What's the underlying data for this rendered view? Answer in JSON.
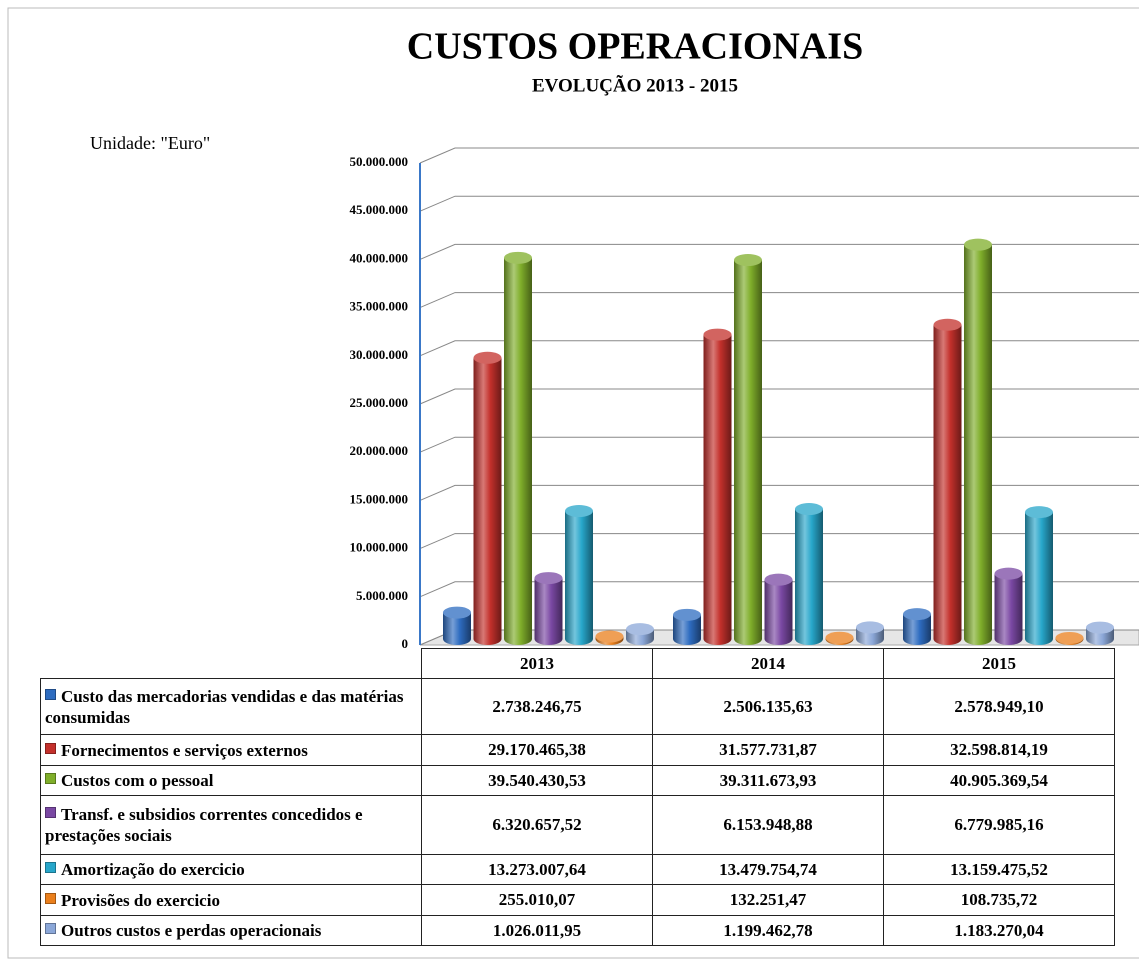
{
  "chart_data": {
    "type": "bar3d",
    "title": "CUSTOS OPERACIONAIS",
    "subtitle": "EVOLUÇÃO 2013 - 2015",
    "annotation": "Unidade: \"Euro\"",
    "categories": [
      "2013",
      "2014",
      "2015"
    ],
    "ylim": [
      0,
      50000000
    ],
    "yticks": [
      0,
      {
        "value": 5000000,
        "label": "5.000.000"
      },
      {
        "value": 10000000,
        "label": "10.000.000"
      },
      {
        "value": 15000000,
        "label": "15.000.000"
      },
      {
        "value": 20000000,
        "label": "20.000.000"
      },
      {
        "value": 25000000,
        "label": "25.000.000"
      },
      {
        "value": 30000000,
        "label": "30.000.000"
      },
      {
        "value": 35000000,
        "label": "35.000.000"
      },
      {
        "value": 40000000,
        "label": "40.000.000"
      },
      {
        "value": 45000000,
        "label": "45.000.000"
      },
      {
        "value": 50000000,
        "label": "50.000.000"
      }
    ],
    "grid": true,
    "series": [
      {
        "name": "Custo das mercadorias vendidas e das matérias consumidas",
        "color": "#2e6cc0",
        "values": [
          2738246.75,
          2506135.63,
          2578949.1
        ],
        "value_labels": [
          "2.738.246,75",
          "2.506.135,63",
          "2.578.949,10"
        ]
      },
      {
        "name": "Fornecimentos e serviços externos",
        "color": "#c3302b",
        "values": [
          29170465.38,
          31577731.87,
          32598814.19
        ],
        "value_labels": [
          "29.170.465,38",
          "31.577.731,87",
          "32.598.814,19"
        ]
      },
      {
        "name": "Custos com o pessoal",
        "color": "#7fae2a",
        "values": [
          39540430.53,
          39311673.93,
          40905369.54
        ],
        "value_labels": [
          "39.540.430,53",
          "39.311.673,93",
          "40.905.369,54"
        ]
      },
      {
        "name": "Transf. e subsidios correntes concedidos e prestações sociais",
        "color": "#7a48a3",
        "values": [
          6320657.52,
          6153948.88,
          6779985.16
        ],
        "value_labels": [
          "6.320.657,52",
          "6.153.948,88",
          "6.779.985,16"
        ]
      },
      {
        "name": "Amortização do exercicio",
        "color": "#27a6ca",
        "values": [
          13273007.64,
          13479754.74,
          13159475.52
        ],
        "value_labels": [
          "13.273.007,64",
          "13.479.754,74",
          "13.159.475,52"
        ]
      },
      {
        "name": "Provisões do exercicio",
        "color": "#ea7f1c",
        "values": [
          255010.07,
          132251.47,
          108735.72
        ],
        "value_labels": [
          "255.010,07",
          "132.251,47",
          "108.735,72"
        ]
      },
      {
        "name": "Outros custos e perdas operacionais",
        "color": "#8ba7d8",
        "values": [
          1026011.95,
          1199462.78,
          1183270.04
        ],
        "value_labels": [
          "1.026.011,95",
          "1.199.462,78",
          "1.183.270,04"
        ]
      }
    ]
  }
}
